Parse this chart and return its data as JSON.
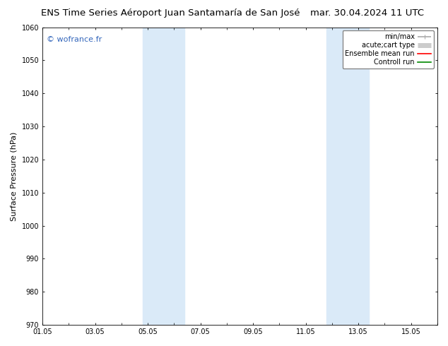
{
  "title_left": "ENS Time Series Aéroport Juan Santamaría de San José",
  "title_right": "mar. 30.04.2024 11 UTC",
  "ylabel": "Surface Pressure (hPa)",
  "ylim": [
    970,
    1060
  ],
  "yticks": [
    970,
    980,
    990,
    1000,
    1010,
    1020,
    1030,
    1040,
    1050,
    1060
  ],
  "xlim_days": [
    0,
    15
  ],
  "xtick_labels": [
    "01.05",
    "03.05",
    "05.05",
    "07.05",
    "09.05",
    "11.05",
    "13.05",
    "15.05"
  ],
  "xtick_positions": [
    0,
    2,
    4,
    6,
    8,
    10,
    12,
    14
  ],
  "shaded_bands": [
    {
      "xmin": 3.8,
      "xmax": 5.4
    },
    {
      "xmin": 10.8,
      "xmax": 12.4
    }
  ],
  "band_color": "#daeaf8",
  "background_color": "#ffffff",
  "plot_bg_color": "#ffffff",
  "watermark_text": "© wofrance.fr",
  "watermark_color": "#3366bb",
  "legend_items": [
    {
      "label": "min/max",
      "color": "#aaaaaa",
      "lw": 1.2
    },
    {
      "label": "acute;cart type",
      "color": "#cccccc",
      "lw": 5
    },
    {
      "label": "Ensemble mean run",
      "color": "#ff0000",
      "lw": 1.2
    },
    {
      "label": "Controll run",
      "color": "#008800",
      "lw": 1.2
    }
  ],
  "title_fontsize": 9.5,
  "tick_fontsize": 7,
  "ylabel_fontsize": 8,
  "watermark_fontsize": 8,
  "legend_fontsize": 7
}
